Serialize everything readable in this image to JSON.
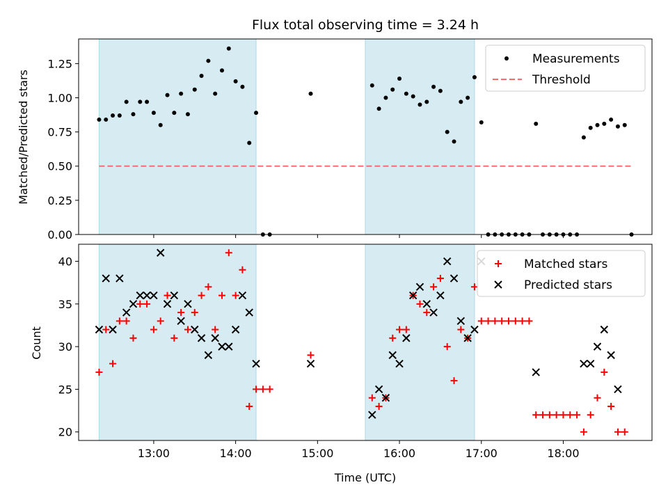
{
  "chart_data": [
    {
      "type": "scatter",
      "title": "Flux total observing time = 3.24 h",
      "ylabel": "Matched/Predicted stars",
      "xlabel": "",
      "ylim": [
        0,
        1.43
      ],
      "yticks": [
        0.0,
        0.25,
        0.5,
        0.75,
        1.0,
        1.25
      ],
      "ytick_labels": [
        "0.00",
        "0.25",
        "0.50",
        "0.75",
        "1.00",
        "1.25"
      ],
      "xlim": [
        "12:05",
        "19:05"
      ],
      "legend": "top-right",
      "shaded_intervals": [
        [
          "12:20",
          "14:15"
        ],
        [
          "15:35",
          "16:55"
        ]
      ],
      "series": [
        {
          "name": "Measurements",
          "marker": "dot",
          "color": "#000000",
          "points": [
            [
              "12:20",
              0.84
            ],
            [
              "12:25",
              0.84
            ],
            [
              "12:30",
              0.87
            ],
            [
              "12:35",
              0.87
            ],
            [
              "12:40",
              0.97
            ],
            [
              "12:45",
              0.88
            ],
            [
              "12:50",
              0.97
            ],
            [
              "12:55",
              0.97
            ],
            [
              "13:00",
              0.89
            ],
            [
              "13:05",
              0.8
            ],
            [
              "13:10",
              1.02
            ],
            [
              "13:15",
              0.89
            ],
            [
              "13:20",
              1.03
            ],
            [
              "13:25",
              0.88
            ],
            [
              "13:30",
              1.06
            ],
            [
              "13:35",
              1.16
            ],
            [
              "13:40",
              1.27
            ],
            [
              "13:45",
              1.03
            ],
            [
              "13:50",
              1.2
            ],
            [
              "13:55",
              1.36
            ],
            [
              "14:00",
              1.12
            ],
            [
              "14:05",
              1.08
            ],
            [
              "14:10",
              0.67
            ],
            [
              "14:15",
              0.89
            ],
            [
              "14:20",
              0.0
            ],
            [
              "14:25",
              0.0
            ],
            [
              "14:55",
              1.03
            ],
            [
              "15:40",
              1.09
            ],
            [
              "15:45",
              0.92
            ],
            [
              "15:50",
              1.0
            ],
            [
              "15:55",
              1.06
            ],
            [
              "16:00",
              1.14
            ],
            [
              "16:05",
              1.03
            ],
            [
              "16:10",
              1.01
            ],
            [
              "16:15",
              0.95
            ],
            [
              "16:20",
              0.97
            ],
            [
              "16:25",
              1.08
            ],
            [
              "16:30",
              1.05
            ],
            [
              "16:35",
              0.75
            ],
            [
              "16:40",
              0.68
            ],
            [
              "16:45",
              0.97
            ],
            [
              "16:50",
              1.0
            ],
            [
              "16:55",
              1.15
            ],
            [
              "17:00",
              0.82
            ],
            [
              "17:05",
              0.0
            ],
            [
              "17:10",
              0.0
            ],
            [
              "17:15",
              0.0
            ],
            [
              "17:20",
              0.0
            ],
            [
              "17:25",
              0.0
            ],
            [
              "17:30",
              0.0
            ],
            [
              "17:35",
              0.0
            ],
            [
              "17:40",
              0.81
            ],
            [
              "17:45",
              0.0
            ],
            [
              "17:50",
              0.0
            ],
            [
              "17:55",
              0.0
            ],
            [
              "18:00",
              0.0
            ],
            [
              "18:05",
              0.0
            ],
            [
              "18:10",
              0.0
            ],
            [
              "18:15",
              0.71
            ],
            [
              "18:20",
              0.78
            ],
            [
              "18:25",
              0.8
            ],
            [
              "18:30",
              0.81
            ],
            [
              "18:35",
              0.84
            ],
            [
              "18:40",
              0.79
            ],
            [
              "18:45",
              0.8
            ],
            [
              "18:50",
              0.0
            ]
          ]
        },
        {
          "name": "Threshold",
          "type": "line",
          "style": "dashed",
          "color": "#ff6b6b",
          "x": [
            "12:20",
            "18:50"
          ],
          "y": [
            0.5,
            0.5
          ]
        }
      ]
    },
    {
      "type": "scatter",
      "xlabel": "Time (UTC)",
      "ylabel": "Count",
      "ylim": [
        19,
        42
      ],
      "yticks": [
        20,
        25,
        30,
        35,
        40
      ],
      "ytick_labels": [
        "20",
        "25",
        "30",
        "35",
        "40"
      ],
      "xlim": [
        "12:05",
        "19:05"
      ],
      "xticks": [
        "13:00",
        "14:00",
        "15:00",
        "16:00",
        "17:00",
        "18:00"
      ],
      "xtick_labels": [
        "13:00",
        "14:00",
        "15:00",
        "16:00",
        "17:00",
        "18:00"
      ],
      "legend": "top-right",
      "shaded_intervals": [
        [
          "12:20",
          "14:15"
        ],
        [
          "15:35",
          "16:55"
        ]
      ],
      "series": [
        {
          "name": "Matched stars",
          "marker": "plus",
          "color": "#ff0000",
          "points": [
            [
              "12:20",
              27
            ],
            [
              "12:25",
              32
            ],
            [
              "12:30",
              28
            ],
            [
              "12:35",
              33
            ],
            [
              "12:40",
              33
            ],
            [
              "12:45",
              31
            ],
            [
              "12:50",
              35
            ],
            [
              "12:55",
              35
            ],
            [
              "13:00",
              32
            ],
            [
              "13:05",
              33
            ],
            [
              "13:10",
              36
            ],
            [
              "13:15",
              31
            ],
            [
              "13:20",
              34
            ],
            [
              "13:25",
              32
            ],
            [
              "13:30",
              34
            ],
            [
              "13:35",
              36
            ],
            [
              "13:40",
              37
            ],
            [
              "13:45",
              32
            ],
            [
              "13:50",
              36
            ],
            [
              "13:55",
              41
            ],
            [
              "14:00",
              36
            ],
            [
              "14:05",
              39
            ],
            [
              "14:10",
              23
            ],
            [
              "14:15",
              25
            ],
            [
              "14:20",
              25
            ],
            [
              "14:25",
              25
            ],
            [
              "14:55",
              29
            ],
            [
              "15:40",
              24
            ],
            [
              "15:45",
              23
            ],
            [
              "15:50",
              24
            ],
            [
              "15:55",
              31
            ],
            [
              "16:00",
              32
            ],
            [
              "16:05",
              32
            ],
            [
              "16:10",
              36
            ],
            [
              "16:15",
              35
            ],
            [
              "16:20",
              34
            ],
            [
              "16:25",
              37
            ],
            [
              "16:30",
              38
            ],
            [
              "16:35",
              30
            ],
            [
              "16:40",
              26
            ],
            [
              "16:45",
              32
            ],
            [
              "16:50",
              31
            ],
            [
              "16:55",
              37
            ],
            [
              "17:00",
              33
            ],
            [
              "17:05",
              33
            ],
            [
              "17:10",
              33
            ],
            [
              "17:15",
              33
            ],
            [
              "17:20",
              33
            ],
            [
              "17:25",
              33
            ],
            [
              "17:30",
              33
            ],
            [
              "17:35",
              33
            ],
            [
              "17:40",
              22
            ],
            [
              "17:45",
              22
            ],
            [
              "17:50",
              22
            ],
            [
              "17:55",
              22
            ],
            [
              "18:00",
              22
            ],
            [
              "18:05",
              22
            ],
            [
              "18:10",
              22
            ],
            [
              "18:15",
              20
            ],
            [
              "18:20",
              22
            ],
            [
              "18:25",
              24
            ],
            [
              "18:30",
              27
            ],
            [
              "18:35",
              23
            ],
            [
              "18:40",
              20
            ],
            [
              "18:45",
              20
            ]
          ]
        },
        {
          "name": "Predicted stars",
          "marker": "x",
          "color": "#000000",
          "points": [
            [
              "12:20",
              32
            ],
            [
              "12:25",
              38
            ],
            [
              "12:30",
              32
            ],
            [
              "12:35",
              38
            ],
            [
              "12:40",
              34
            ],
            [
              "12:45",
              35
            ],
            [
              "12:50",
              36
            ],
            [
              "12:55",
              36
            ],
            [
              "13:00",
              36
            ],
            [
              "13:05",
              41
            ],
            [
              "13:10",
              35
            ],
            [
              "13:15",
              36
            ],
            [
              "13:20",
              33
            ],
            [
              "13:25",
              35
            ],
            [
              "13:30",
              32
            ],
            [
              "13:35",
              31
            ],
            [
              "13:40",
              29
            ],
            [
              "13:45",
              31
            ],
            [
              "13:50",
              30
            ],
            [
              "13:55",
              30
            ],
            [
              "14:00",
              32
            ],
            [
              "14:05",
              36
            ],
            [
              "14:10",
              34
            ],
            [
              "14:15",
              28
            ],
            [
              "14:55",
              28
            ],
            [
              "15:40",
              22
            ],
            [
              "15:45",
              25
            ],
            [
              "15:50",
              24
            ],
            [
              "15:55",
              29
            ],
            [
              "16:00",
              28
            ],
            [
              "16:05",
              31
            ],
            [
              "16:10",
              36
            ],
            [
              "16:15",
              37
            ],
            [
              "16:20",
              35
            ],
            [
              "16:25",
              34
            ],
            [
              "16:30",
              36
            ],
            [
              "16:35",
              40
            ],
            [
              "16:40",
              38
            ],
            [
              "16:45",
              33
            ],
            [
              "16:50",
              31
            ],
            [
              "16:55",
              32
            ],
            [
              "17:00",
              40
            ],
            [
              "17:40",
              27
            ],
            [
              "18:15",
              28
            ],
            [
              "18:20",
              28
            ],
            [
              "18:25",
              30
            ],
            [
              "18:30",
              32
            ],
            [
              "18:35",
              29
            ],
            [
              "18:40",
              25
            ]
          ]
        }
      ]
    }
  ]
}
